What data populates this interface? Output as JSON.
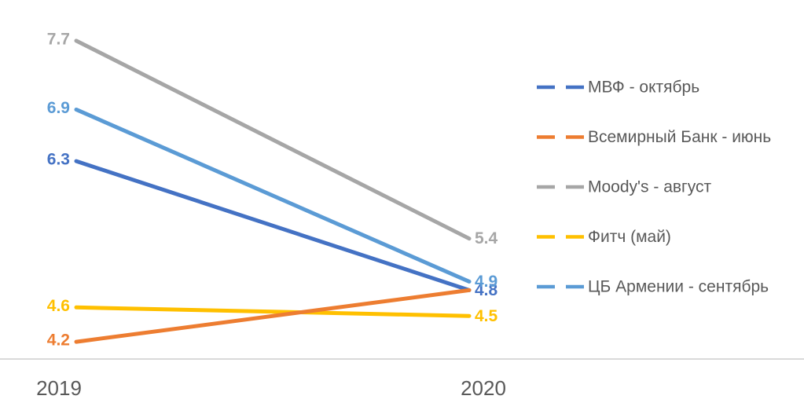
{
  "chart_data": {
    "type": "line",
    "title": "",
    "xlabel": "",
    "ylabel": "",
    "categories": [
      "2019",
      "2020"
    ],
    "series": [
      {
        "name": "МВФ - октябрь",
        "color": "#4472C4",
        "values": [
          6.3,
          4.8
        ],
        "data_labels": [
          "6.3",
          "4.8"
        ]
      },
      {
        "name": "Всемирный Банк - июнь",
        "color": "#ED7D31",
        "values": [
          4.2,
          4.8
        ],
        "data_labels": [
          "4.2",
          null
        ]
      },
      {
        "name": "Moody's - август",
        "color": "#A6A6A6",
        "values": [
          7.7,
          5.4
        ],
        "data_labels": [
          "7.7",
          "5.4"
        ]
      },
      {
        "name": "Фитч (май)",
        "color": "#FFC000",
        "values": [
          4.6,
          4.5
        ],
        "data_labels": [
          "4.6",
          "4.5"
        ]
      },
      {
        "name": "ЦБ Армении - сентябрь",
        "color": "#5B9BD5",
        "values": [
          6.9,
          4.9
        ],
        "data_labels": [
          "6.9",
          "4.9"
        ]
      }
    ],
    "legend_position": "right",
    "grid": false,
    "data_labels_shown": true,
    "axis_color": "#D9D9D9",
    "text_color": "#595959",
    "ylim": [
      4.0,
      8.2
    ]
  }
}
